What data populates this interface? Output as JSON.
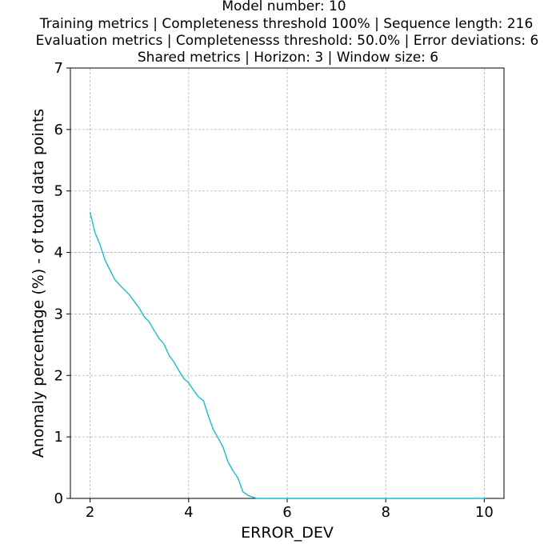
{
  "chart_data": {
    "type": "line",
    "title_lines": [
      "Model number: 10",
      "Training metrics | Completeness threshold 100% | Sequence length: 216",
      "Evaluation metrics | Completenesss threshold: 50.0% | Error deviations: 6",
      "Shared metrics | Horizon: 3 | Window size: 6"
    ],
    "xlabel": "ERROR_DEV",
    "ylabel": "Anomaly percentage (%) - of total data points",
    "xlim": [
      1.6,
      10.4
    ],
    "ylim": [
      0,
      7
    ],
    "xticks": [
      2,
      4,
      6,
      8,
      10
    ],
    "xtick_labels": [
      "2",
      "4",
      "6",
      "8",
      "10"
    ],
    "yticks": [
      0,
      1,
      2,
      3,
      4,
      5,
      6,
      7
    ],
    "ytick_labels": [
      "0",
      "1",
      "2",
      "3",
      "4",
      "5",
      "6",
      "7"
    ],
    "grid": true,
    "line_color": "#17becf",
    "series": [
      {
        "x": [
          2.0,
          2.1,
          2.2,
          2.3,
          2.4,
          2.5,
          2.6,
          2.7,
          2.8,
          2.9,
          3.0,
          3.1,
          3.2,
          3.3,
          3.4,
          3.5,
          3.6,
          3.7,
          3.8,
          3.9,
          4.0,
          4.1,
          4.2,
          4.3,
          4.4,
          4.5,
          4.6,
          4.7,
          4.8,
          4.9,
          5.0,
          5.1,
          5.2,
          5.3,
          5.4,
          5.5,
          6.0,
          7.0,
          8.0,
          9.0,
          10.0
        ],
        "y": [
          4.65,
          4.32,
          4.13,
          3.88,
          3.72,
          3.56,
          3.47,
          3.39,
          3.31,
          3.2,
          3.09,
          2.95,
          2.87,
          2.73,
          2.6,
          2.51,
          2.33,
          2.22,
          2.08,
          1.95,
          1.88,
          1.76,
          1.65,
          1.59,
          1.34,
          1.12,
          0.98,
          0.83,
          0.59,
          0.45,
          0.33,
          0.11,
          0.05,
          0.02,
          0.0,
          0.0,
          0.0,
          0.0,
          0.0,
          0.0,
          0.0
        ]
      }
    ]
  }
}
